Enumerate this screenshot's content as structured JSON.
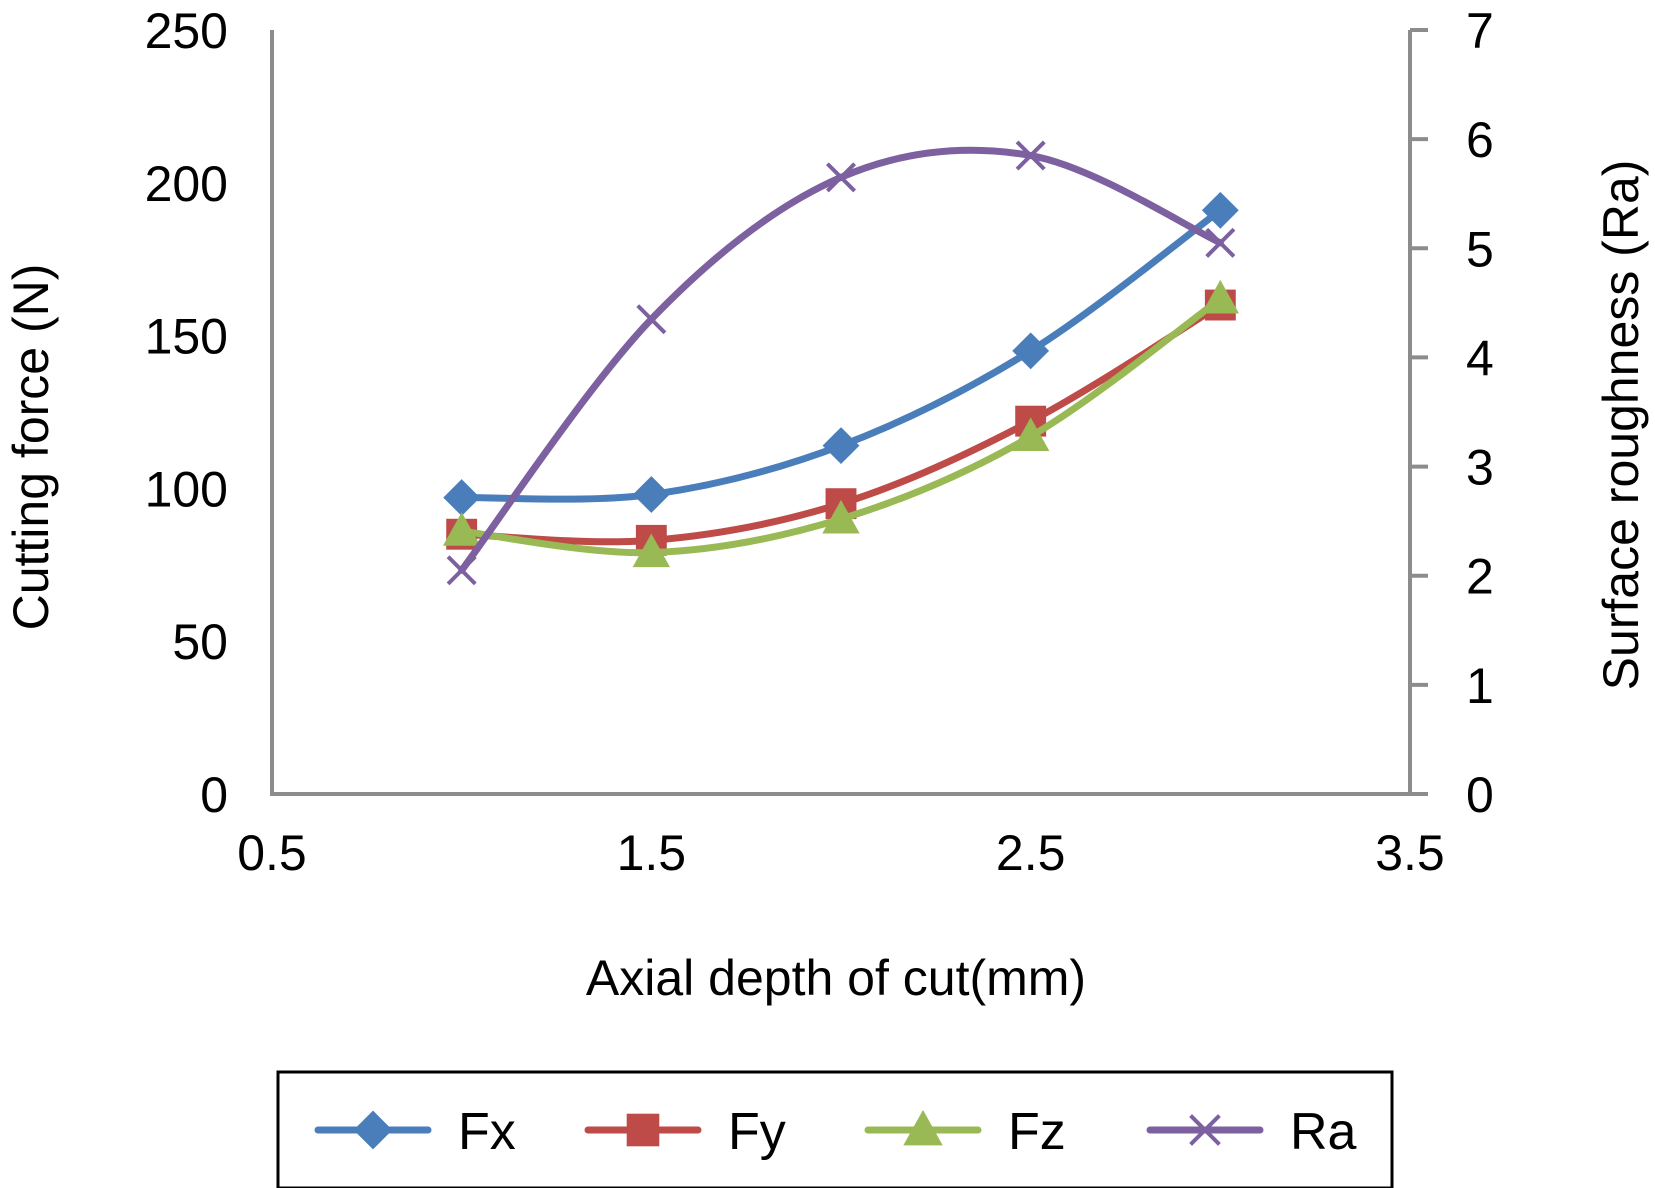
{
  "chart_data": {
    "type": "line",
    "xlabel": "Axial depth of cut(mm)",
    "ylabel": "Cutting force (N)",
    "y2label": "Surface roughness (Ra)",
    "xlim": [
      0.5,
      3.5
    ],
    "ylim": [
      0,
      250
    ],
    "y2lim": [
      0,
      7
    ],
    "xticks": [
      "0.5",
      "1.5",
      "2.5",
      "3.5"
    ],
    "yticks": [
      "0",
      "50",
      "100",
      "150",
      "200",
      "250"
    ],
    "y2ticks": [
      "0",
      "1",
      "2",
      "3",
      "4",
      "5",
      "6",
      "7"
    ],
    "x": [
      1,
      1.5,
      2,
      2.5,
      3
    ],
    "grid": false,
    "legend_position": "bottom",
    "series": [
      {
        "name": "Fx",
        "axis": "left",
        "marker": "diamond",
        "color": "#4A7EBB",
        "values": [
          97,
          98,
          114,
          145,
          191
        ]
      },
      {
        "name": "Fy",
        "axis": "left",
        "marker": "square",
        "color": "#BE4B48",
        "values": [
          85,
          83,
          95,
          122,
          160
        ]
      },
      {
        "name": "Fz",
        "axis": "left",
        "marker": "triangle",
        "color": "#98B954",
        "values": [
          86,
          79,
          90,
          117,
          162
        ]
      },
      {
        "name": "Ra",
        "axis": "right",
        "marker": "x",
        "color": "#7D60A0",
        "values": [
          2.05,
          4.35,
          5.65,
          5.85,
          5.05
        ]
      }
    ]
  }
}
